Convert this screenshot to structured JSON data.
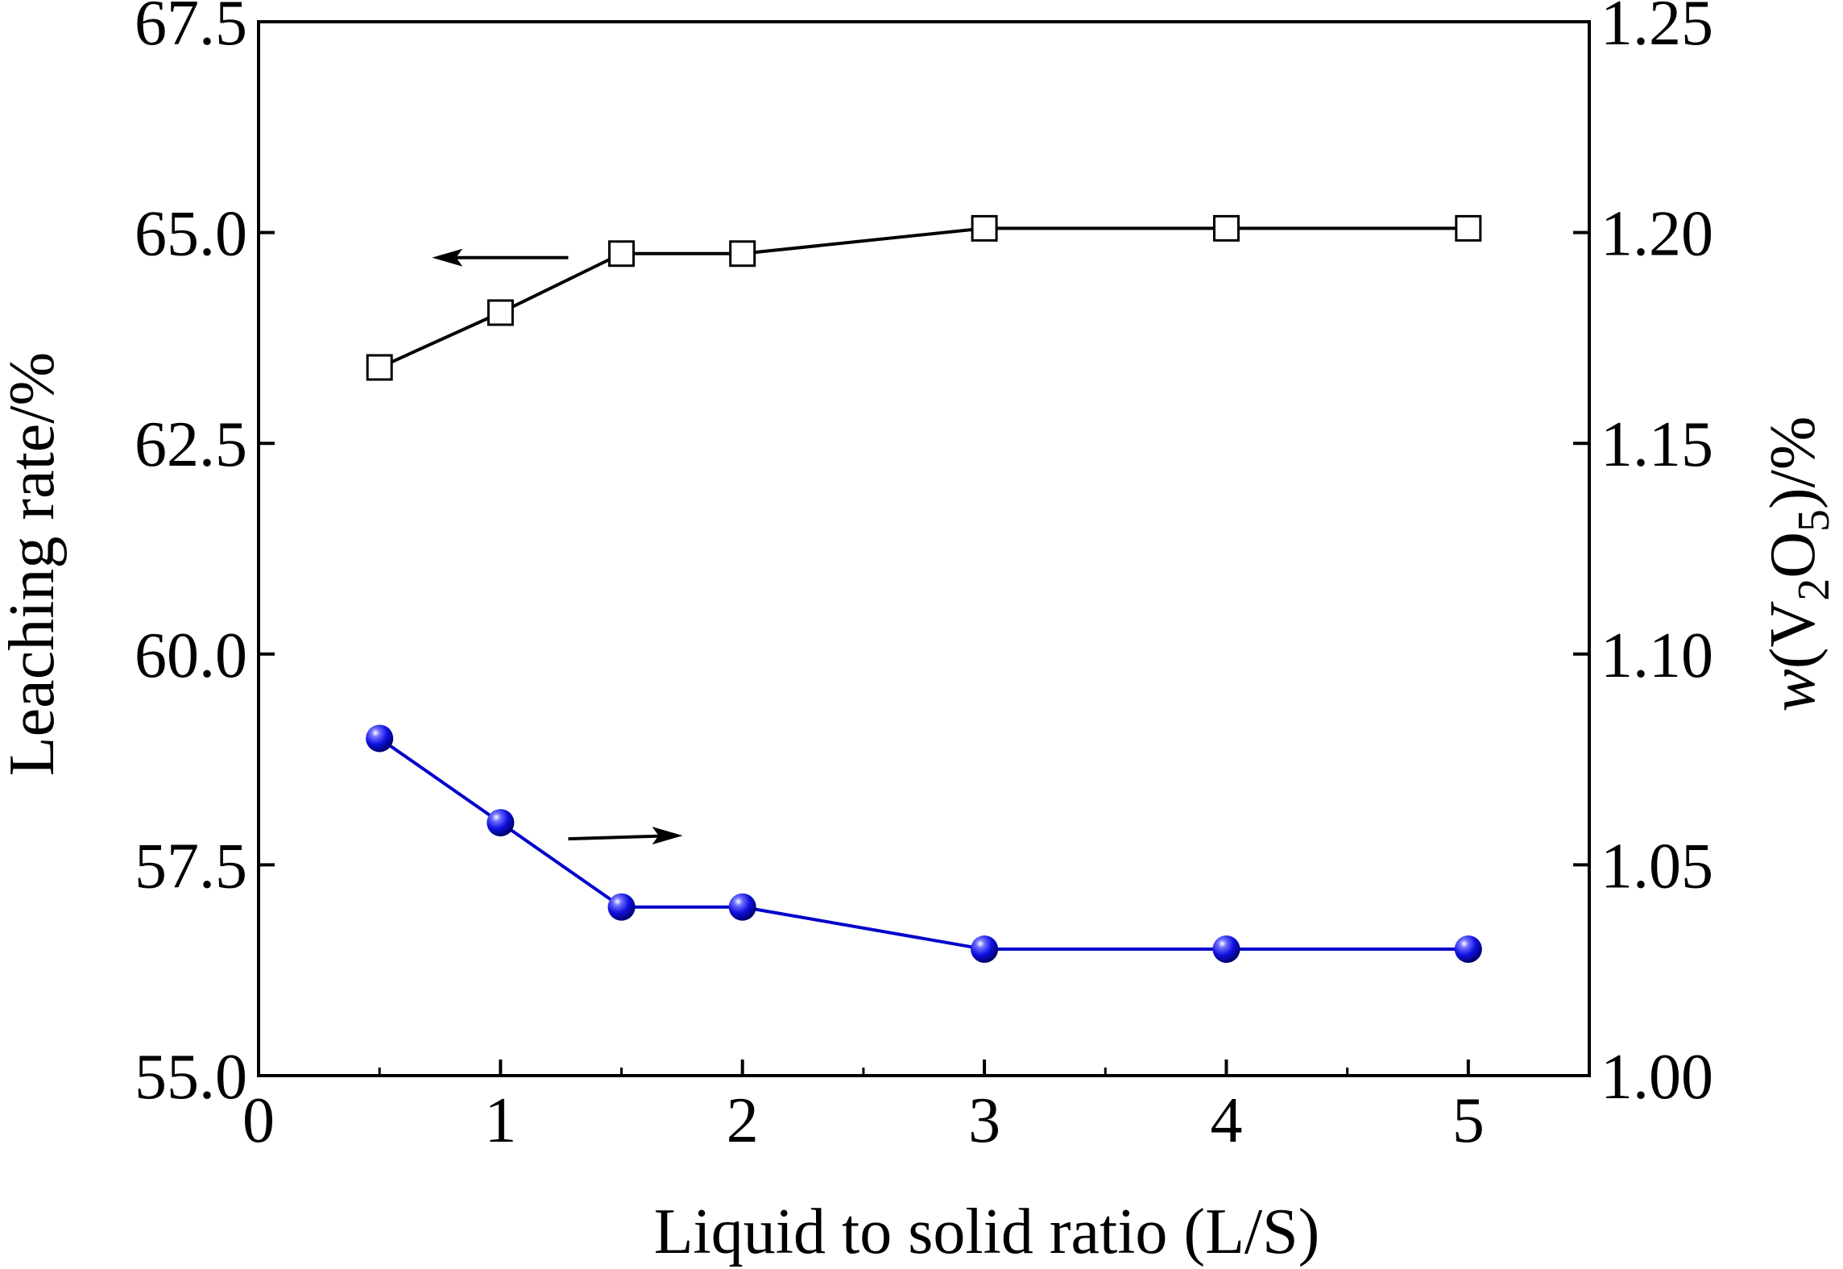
{
  "chart_data": {
    "type": "line",
    "title": "",
    "xlabel": "Liquid to solid ratio (L/S)",
    "ylabel_left": "Leaching rate/%",
    "ylabel_right": {
      "parts": [
        "w",
        "(V",
        "2",
        "O",
        "5",
        ")/%"
      ]
    },
    "xlim": [
      0,
      5.5
    ],
    "ylim_left": [
      55.0,
      67.5
    ],
    "ylim_right": [
      1.0,
      1.25
    ],
    "x_ticks": [
      "0",
      "1",
      "2",
      "3",
      "4",
      "5"
    ],
    "y_left_ticks": [
      "55.0",
      "57.5",
      "60.0",
      "62.5",
      "65.0",
      "67.5"
    ],
    "y_right_ticks": [
      "1.00",
      "1.05",
      "1.10",
      "1.15",
      "1.20",
      "1.25"
    ],
    "grid": false,
    "x": [
      0.5,
      1,
      1.5,
      2,
      3,
      4,
      5
    ],
    "series": [
      {
        "axis": "left",
        "marker": "open-square",
        "color": "#000000",
        "values": [
          63.4,
          64.05,
          64.75,
          64.75,
          65.05,
          65.05,
          65.05
        ],
        "arrow_direction": "left"
      },
      {
        "axis": "right",
        "marker": "filled-sphere",
        "color": "#0000cc",
        "values": [
          1.08,
          1.06,
          1.04,
          1.04,
          1.03,
          1.03,
          1.03
        ],
        "arrow_direction": "right"
      }
    ]
  }
}
